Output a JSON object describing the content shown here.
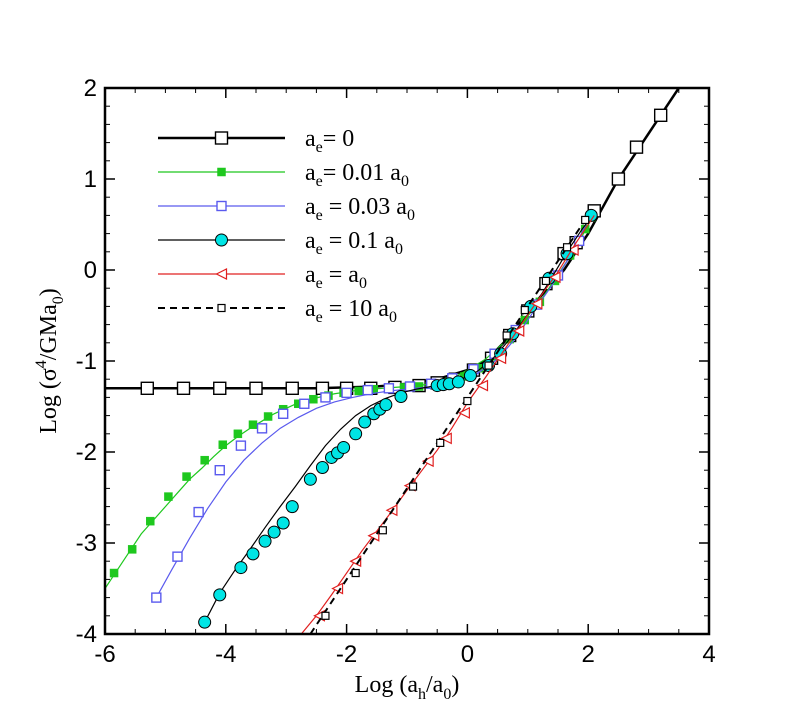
{
  "chart_data": {
    "type": "line",
    "xlabel": {
      "main": "Log (a",
      "sub": "h",
      "mid": "/a",
      "sub2": "0",
      "end": ")"
    },
    "ylabel": {
      "main": "Log (σ",
      "sup": "4",
      "mid": "/GMa",
      "sub": "0",
      "end": ")"
    },
    "xlim": [
      -6,
      4
    ],
    "ylim": [
      -4,
      2
    ],
    "xticks": [
      -6,
      -4,
      -2,
      0,
      2,
      4
    ],
    "yticks": [
      -4,
      -3,
      -2,
      -1,
      0,
      1,
      2
    ],
    "xtick_labels": [
      "-6",
      "-4",
      "-2",
      "0",
      "2",
      "4"
    ],
    "ytick_labels": [
      "-4",
      "-3",
      "-2",
      "-1",
      "0",
      "1",
      "2"
    ],
    "grid": false,
    "legend_position": "top-left",
    "series": [
      {
        "legend": {
          "a": "a",
          "sub": "e",
          "text": "= 0",
          "sub2": ""
        },
        "color": "#000000",
        "line_width": 2.5,
        "dash": "",
        "marker": "open-square",
        "marker_size": 12,
        "line_x": [
          -6,
          -5,
          -4,
          -3,
          -2.5,
          -2,
          -1.5,
          -1,
          -0.5,
          0,
          0.3,
          0.6,
          0.9,
          1.2,
          1.6,
          2,
          2.5,
          3,
          3.5
        ],
        "line_y": [
          -1.3,
          -1.3,
          -1.3,
          -1.3,
          -1.3,
          -1.29,
          -1.28,
          -1.25,
          -1.2,
          -1.1,
          -1.0,
          -0.8,
          -0.55,
          -0.3,
          0.0,
          0.4,
          1.0,
          1.5,
          2.0
        ],
        "marker_x": [
          -5.3,
          -4.7,
          -4.1,
          -3.5,
          -2.9,
          -2.4,
          -2.0,
          -1.6,
          -1.2,
          -0.8,
          -0.5,
          -0.2,
          0.1,
          0.4,
          0.7,
          1.0,
          1.3,
          1.6,
          1.8,
          2.1,
          2.5,
          2.8,
          3.2
        ],
        "marker_y": [
          -1.3,
          -1.3,
          -1.3,
          -1.3,
          -1.3,
          -1.3,
          -1.3,
          -1.3,
          -1.29,
          -1.27,
          -1.24,
          -1.2,
          -1.1,
          -0.97,
          -0.72,
          -0.45,
          -0.15,
          0.18,
          0.3,
          0.65,
          1.0,
          1.35,
          1.7
        ]
      },
      {
        "legend": {
          "a": "a",
          "sub": "e",
          "text": "= 0.01 a",
          "sub2": "0"
        },
        "color": "#1ec81e",
        "line_width": 1.2,
        "dash": "",
        "marker": "filled-square",
        "marker_size": 8,
        "line_x": [
          -6,
          -5.8,
          -5.6,
          -5.4,
          -5.2,
          -5.0,
          -4.8,
          -4.6,
          -4.4,
          -4.2,
          -4.0,
          -3.8,
          -3.6,
          -3.4,
          -3.2,
          -3.0,
          -2.8,
          -2.6,
          -2.4,
          -2.2,
          -2.0,
          -1.8,
          -1.6,
          -1.4,
          -1.2,
          -1.0,
          -0.8,
          -0.6,
          -0.4,
          -0.2,
          0,
          0.3,
          0.6,
          0.9,
          1.2,
          1.5,
          1.8,
          2.1
        ],
        "line_y": [
          -3.5,
          -3.3,
          -3.1,
          -2.9,
          -2.75,
          -2.6,
          -2.45,
          -2.3,
          -2.18,
          -2.05,
          -1.93,
          -1.83,
          -1.74,
          -1.66,
          -1.58,
          -1.52,
          -1.46,
          -1.42,
          -1.39,
          -1.36,
          -1.34,
          -1.32,
          -1.31,
          -1.3,
          -1.29,
          -1.28,
          -1.27,
          -1.25,
          -1.22,
          -1.17,
          -1.1,
          -0.98,
          -0.8,
          -0.58,
          -0.35,
          -0.05,
          0.25,
          0.62
        ],
        "marker_x": [
          -5.85,
          -5.55,
          -5.25,
          -4.95,
          -4.65,
          -4.35,
          -4.05,
          -3.8,
          -3.55,
          -3.3,
          -3.05,
          -2.8,
          -2.55,
          -2.3,
          -2.05,
          -1.8,
          -1.55,
          -1.3,
          -1.05,
          -0.8,
          -0.55,
          -0.3,
          -0.05,
          0.2,
          0.45,
          0.7,
          0.95,
          1.2,
          1.45,
          1.7,
          1.95,
          2.05
        ],
        "marker_y": [
          -3.33,
          -3.07,
          -2.76,
          -2.49,
          -2.27,
          -2.09,
          -1.92,
          -1.8,
          -1.7,
          -1.61,
          -1.53,
          -1.47,
          -1.42,
          -1.38,
          -1.35,
          -1.33,
          -1.31,
          -1.3,
          -1.29,
          -1.28,
          -1.26,
          -1.23,
          -1.17,
          -1.08,
          -0.95,
          -0.76,
          -0.55,
          -0.35,
          -0.12,
          0.16,
          0.45,
          0.58
        ]
      },
      {
        "legend": {
          "a": "a",
          "sub": "e",
          "text": " = 0.03 a",
          "sub2": "0"
        },
        "color": "#5a5aee",
        "line_width": 1.2,
        "dash": "",
        "marker": "open-square",
        "marker_size": 9,
        "line_x": [
          -5.15,
          -4.9,
          -4.6,
          -4.3,
          -4.0,
          -3.7,
          -3.4,
          -3.1,
          -2.8,
          -2.5,
          -2.2,
          -1.9,
          -1.6,
          -1.3,
          -1.0,
          -0.7,
          -0.4,
          -0.1,
          0.2,
          0.5,
          0.8,
          1.1,
          1.4,
          1.7,
          2.0
        ],
        "line_y": [
          -3.6,
          -3.3,
          -2.95,
          -2.62,
          -2.33,
          -2.09,
          -1.9,
          -1.74,
          -1.62,
          -1.52,
          -1.45,
          -1.4,
          -1.36,
          -1.33,
          -1.31,
          -1.29,
          -1.26,
          -1.21,
          -1.12,
          -0.98,
          -0.75,
          -0.45,
          -0.17,
          0.15,
          0.55
        ],
        "marker_x": [
          -5.15,
          -4.8,
          -4.45,
          -4.1,
          -3.75,
          -3.4,
          -3.05,
          -2.7,
          -2.35,
          -2.0,
          -1.65,
          -1.3,
          -0.95,
          -0.6,
          -0.25,
          0.1,
          0.45,
          0.8,
          1.15,
          1.5,
          1.85
        ],
        "marker_y": [
          -3.6,
          -3.15,
          -2.66,
          -2.2,
          -1.93,
          -1.74,
          -1.58,
          -1.47,
          -1.4,
          -1.35,
          -1.32,
          -1.3,
          -1.28,
          -1.25,
          -1.19,
          -1.09,
          -0.92,
          -0.66,
          -0.38,
          -0.06,
          0.32
        ]
      },
      {
        "legend": {
          "a": "a",
          "sub": "e",
          "text": " = 0.1 a",
          "sub2": "0"
        },
        "color": "#000000",
        "line_width": 1.2,
        "dash": "",
        "marker": "cyan-circle",
        "marker_size": 12,
        "marker_fill": "#00e5e5",
        "line_x": [
          -4.35,
          -4.1,
          -3.85,
          -3.6,
          -3.35,
          -3.1,
          -2.85,
          -2.6,
          -2.35,
          -2.1,
          -1.85,
          -1.6,
          -1.35,
          -1.1,
          -0.85,
          -0.6,
          -0.35,
          -0.1,
          0.15,
          0.4,
          0.65,
          0.9,
          1.15,
          1.4,
          1.65,
          1.9,
          2.1
        ],
        "line_y": [
          -3.87,
          -3.55,
          -3.3,
          -3.07,
          -2.83,
          -2.6,
          -2.38,
          -2.15,
          -1.93,
          -1.75,
          -1.6,
          -1.49,
          -1.41,
          -1.35,
          -1.31,
          -1.28,
          -1.25,
          -1.2,
          -1.12,
          -0.99,
          -0.8,
          -0.58,
          -0.35,
          -0.08,
          0.2,
          0.45,
          0.62
        ],
        "marker_x": [
          -4.35,
          -4.1,
          -3.75,
          -3.55,
          -3.35,
          -3.2,
          -3.05,
          -2.9,
          -2.6,
          -2.4,
          -2.25,
          -2.15,
          -2.05,
          -1.85,
          -1.7,
          -1.55,
          -1.45,
          -1.35,
          -1.1,
          -0.5,
          -0.4,
          -0.3,
          -0.15,
          0.05,
          0.35,
          0.55,
          0.75,
          1.05,
          1.35,
          1.65,
          2.05
        ],
        "marker_y": [
          -3.87,
          -3.57,
          -3.27,
          -3.12,
          -2.98,
          -2.88,
          -2.78,
          -2.6,
          -2.3,
          -2.17,
          -2.06,
          -2.01,
          -1.95,
          -1.8,
          -1.67,
          -1.58,
          -1.53,
          -1.48,
          -1.39,
          -1.27,
          -1.26,
          -1.25,
          -1.23,
          -1.16,
          -1.05,
          -0.92,
          -0.7,
          -0.4,
          -0.09,
          0.18,
          0.6
        ]
      },
      {
        "legend": {
          "a": "a",
          "sub": "e",
          "text": " =  a",
          "sub2": "0"
        },
        "color": "#e02020",
        "line_width": 1.2,
        "dash": "",
        "marker": "left-triangle",
        "marker_size": 10,
        "line_x": [
          -2.75,
          -2.5,
          -2.25,
          -2.0,
          -1.75,
          -1.5,
          -1.25,
          -1.0,
          -0.75,
          -0.5,
          -0.25,
          0,
          0.3,
          0.6,
          0.9,
          1.2,
          1.5,
          1.8,
          2.1
        ],
        "line_y": [
          -4.0,
          -3.8,
          -3.57,
          -3.33,
          -3.09,
          -2.87,
          -2.65,
          -2.42,
          -2.2,
          -1.98,
          -1.73,
          -1.46,
          -1.18,
          -0.89,
          -0.59,
          -0.3,
          -0.02,
          0.3,
          0.6
        ],
        "marker_x": [
          -2.45,
          -2.15,
          -1.85,
          -1.55,
          -1.25,
          -0.95,
          -0.65,
          -0.35,
          -0.05,
          0.25,
          0.55,
          0.85,
          1.15,
          1.45,
          1.75
        ],
        "marker_y": [
          -3.8,
          -3.5,
          -3.2,
          -2.92,
          -2.64,
          -2.37,
          -2.1,
          -1.85,
          -1.57,
          -1.27,
          -0.97,
          -0.67,
          -0.37,
          -0.08,
          0.22
        ]
      },
      {
        "legend": {
          "a": "a",
          "sub": "e",
          "text": " = 10 a",
          "sub2": "0"
        },
        "color": "#000000",
        "line_width": 2,
        "dash": "7,5",
        "marker": "small-open-square",
        "marker_size": 7,
        "line_x": [
          -2.6,
          -2.0,
          -1.5,
          -1.0,
          -0.5,
          0,
          0.5,
          1.0,
          1.5,
          2.0
        ],
        "line_y": [
          -4.0,
          -3.4,
          -2.9,
          -2.4,
          -1.9,
          -1.4,
          -0.9,
          -0.4,
          0.1,
          0.6
        ],
        "marker_x": [
          -2.35,
          -1.85,
          -1.4,
          -0.9,
          -0.45,
          0.0,
          0.35,
          0.65,
          0.95,
          1.3,
          1.65,
          1.95
        ],
        "marker_y": [
          -3.8,
          -3.33,
          -2.86,
          -2.38,
          -1.9,
          -1.44,
          -1.05,
          -0.72,
          -0.44,
          -0.12,
          0.25,
          0.55
        ]
      }
    ]
  }
}
